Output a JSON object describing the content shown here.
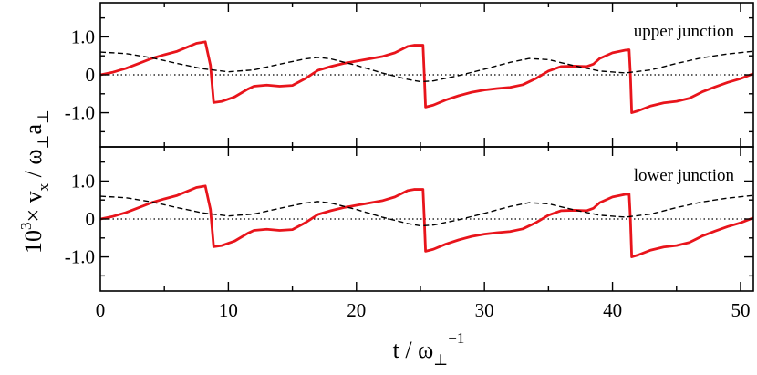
{
  "chart_data": [
    {
      "type": "line",
      "annotation": "upper junction",
      "xlim": [
        0,
        51
      ],
      "ylim": [
        -1.9,
        1.9
      ],
      "yticks": [
        {
          "value": 1.0,
          "label": "1.0"
        },
        {
          "value": 0,
          "label": "0"
        },
        {
          "value": -1.0,
          "label": "-1.0"
        }
      ],
      "series": [
        {
          "style": "solid",
          "color": "#e8141b",
          "points": [
            [
              0,
              0
            ],
            [
              1,
              0.07
            ],
            [
              2,
              0.17
            ],
            [
              3,
              0.3
            ],
            [
              4,
              0.43
            ],
            [
              5,
              0.53
            ],
            [
              6,
              0.62
            ],
            [
              7,
              0.76
            ],
            [
              7.5,
              0.83
            ],
            [
              8.2,
              0.87
            ],
            [
              8.6,
              0.25
            ],
            [
              8.85,
              -0.73
            ],
            [
              9.5,
              -0.7
            ],
            [
              10.5,
              -0.58
            ],
            [
              11.5,
              -0.38
            ],
            [
              12,
              -0.3
            ],
            [
              13,
              -0.27
            ],
            [
              14,
              -0.3
            ],
            [
              15,
              -0.28
            ],
            [
              16,
              -0.1
            ],
            [
              17,
              0.12
            ],
            [
              18,
              0.22
            ],
            [
              19,
              0.3
            ],
            [
              20,
              0.36
            ],
            [
              21,
              0.42
            ],
            [
              22,
              0.48
            ],
            [
              23,
              0.58
            ],
            [
              24,
              0.75
            ],
            [
              24.5,
              0.78
            ],
            [
              25.2,
              0.78
            ],
            [
              25.3,
              0
            ],
            [
              25.4,
              -0.85
            ],
            [
              26,
              -0.8
            ],
            [
              27,
              -0.66
            ],
            [
              28,
              -0.55
            ],
            [
              29,
              -0.46
            ],
            [
              30,
              -0.4
            ],
            [
              31,
              -0.36
            ],
            [
              32,
              -0.33
            ],
            [
              33,
              -0.26
            ],
            [
              34,
              -0.1
            ],
            [
              35,
              0.1
            ],
            [
              36,
              0.22
            ],
            [
              37,
              0.23
            ],
            [
              38,
              0.22
            ],
            [
              38.5,
              0.28
            ],
            [
              39,
              0.43
            ],
            [
              40,
              0.58
            ],
            [
              41,
              0.65
            ],
            [
              41.3,
              0.66
            ],
            [
              41.4,
              0
            ],
            [
              41.5,
              -1.0
            ],
            [
              42,
              -0.95
            ],
            [
              43,
              -0.82
            ],
            [
              44,
              -0.74
            ],
            [
              45,
              -0.7
            ],
            [
              46,
              -0.62
            ],
            [
              47,
              -0.45
            ],
            [
              48,
              -0.32
            ],
            [
              49,
              -0.2
            ],
            [
              50,
              -0.1
            ],
            [
              51,
              0.03
            ]
          ]
        },
        {
          "style": "dashed",
          "color": "#000000",
          "points": [
            [
              0,
              0.6
            ],
            [
              2,
              0.56
            ],
            [
              4,
              0.45
            ],
            [
              6,
              0.3
            ],
            [
              8,
              0.16
            ],
            [
              10,
              0.08
            ],
            [
              12,
              0.13
            ],
            [
              14,
              0.28
            ],
            [
              16,
              0.42
            ],
            [
              17,
              0.46
            ],
            [
              18,
              0.42
            ],
            [
              20,
              0.25
            ],
            [
              22,
              0.05
            ],
            [
              24,
              -0.12
            ],
            [
              25,
              -0.18
            ],
            [
              26,
              -0.16
            ],
            [
              28,
              -0.02
            ],
            [
              30,
              0.15
            ],
            [
              32,
              0.33
            ],
            [
              33.5,
              0.43
            ],
            [
              35,
              0.4
            ],
            [
              37,
              0.24
            ],
            [
              39,
              0.1
            ],
            [
              41,
              0.05
            ],
            [
              43,
              0.13
            ],
            [
              45,
              0.3
            ],
            [
              47,
              0.45
            ],
            [
              49,
              0.55
            ],
            [
              51,
              0.62
            ]
          ]
        }
      ]
    },
    {
      "type": "line",
      "annotation": "lower junction",
      "xlim": [
        0,
        51
      ],
      "ylim": [
        -1.9,
        1.9
      ],
      "yticks": [
        {
          "value": 1.0,
          "label": "1.0"
        },
        {
          "value": 0,
          "label": "0"
        },
        {
          "value": -1.0,
          "label": "-1.0"
        }
      ],
      "xticks": [
        {
          "value": 0,
          "label": "0"
        },
        {
          "value": 10,
          "label": "10"
        },
        {
          "value": 20,
          "label": "20"
        },
        {
          "value": 30,
          "label": "30"
        },
        {
          "value": 40,
          "label": "40"
        },
        {
          "value": 50,
          "label": "50"
        }
      ],
      "series": [
        {
          "style": "solid",
          "color": "#e8141b",
          "points": [
            [
              0,
              0
            ],
            [
              1,
              0.07
            ],
            [
              2,
              0.17
            ],
            [
              3,
              0.3
            ],
            [
              4,
              0.43
            ],
            [
              5,
              0.53
            ],
            [
              6,
              0.62
            ],
            [
              7,
              0.76
            ],
            [
              7.5,
              0.83
            ],
            [
              8.2,
              0.87
            ],
            [
              8.6,
              0.25
            ],
            [
              8.85,
              -0.73
            ],
            [
              9.5,
              -0.7
            ],
            [
              10.5,
              -0.58
            ],
            [
              11.5,
              -0.38
            ],
            [
              12,
              -0.3
            ],
            [
              13,
              -0.27
            ],
            [
              14,
              -0.3
            ],
            [
              15,
              -0.28
            ],
            [
              16,
              -0.1
            ],
            [
              17,
              0.12
            ],
            [
              18,
              0.22
            ],
            [
              19,
              0.3
            ],
            [
              20,
              0.36
            ],
            [
              21,
              0.42
            ],
            [
              22,
              0.48
            ],
            [
              23,
              0.58
            ],
            [
              24,
              0.75
            ],
            [
              24.5,
              0.78
            ],
            [
              25.2,
              0.78
            ],
            [
              25.3,
              0
            ],
            [
              25.4,
              -0.85
            ],
            [
              26,
              -0.8
            ],
            [
              27,
              -0.66
            ],
            [
              28,
              -0.55
            ],
            [
              29,
              -0.46
            ],
            [
              30,
              -0.4
            ],
            [
              31,
              -0.36
            ],
            [
              32,
              -0.33
            ],
            [
              33,
              -0.26
            ],
            [
              34,
              -0.1
            ],
            [
              35,
              0.1
            ],
            [
              36,
              0.22
            ],
            [
              37,
              0.23
            ],
            [
              38,
              0.22
            ],
            [
              38.5,
              0.28
            ],
            [
              39,
              0.43
            ],
            [
              40,
              0.58
            ],
            [
              41,
              0.65
            ],
            [
              41.3,
              0.66
            ],
            [
              41.4,
              0
            ],
            [
              41.5,
              -1.0
            ],
            [
              42,
              -0.95
            ],
            [
              43,
              -0.82
            ],
            [
              44,
              -0.74
            ],
            [
              45,
              -0.7
            ],
            [
              46,
              -0.62
            ],
            [
              47,
              -0.45
            ],
            [
              48,
              -0.32
            ],
            [
              49,
              -0.2
            ],
            [
              50,
              -0.1
            ],
            [
              51,
              0.03
            ]
          ]
        },
        {
          "style": "dashed",
          "color": "#000000",
          "points": [
            [
              0,
              0.6
            ],
            [
              2,
              0.56
            ],
            [
              4,
              0.45
            ],
            [
              6,
              0.3
            ],
            [
              8,
              0.16
            ],
            [
              10,
              0.08
            ],
            [
              12,
              0.13
            ],
            [
              14,
              0.28
            ],
            [
              16,
              0.42
            ],
            [
              17,
              0.46
            ],
            [
              18,
              0.42
            ],
            [
              20,
              0.25
            ],
            [
              22,
              0.05
            ],
            [
              24,
              -0.12
            ],
            [
              25,
              -0.18
            ],
            [
              26,
              -0.16
            ],
            [
              28,
              -0.02
            ],
            [
              30,
              0.15
            ],
            [
              32,
              0.33
            ],
            [
              33.5,
              0.43
            ],
            [
              35,
              0.4
            ],
            [
              37,
              0.24
            ],
            [
              39,
              0.1
            ],
            [
              41,
              0.05
            ],
            [
              43,
              0.13
            ],
            [
              45,
              0.3
            ],
            [
              47,
              0.45
            ],
            [
              49,
              0.55
            ],
            [
              51,
              0.62
            ]
          ]
        }
      ]
    }
  ],
  "axis_labels": {
    "y": {
      "prefix": "10",
      "sup": "3",
      "mid": "× v",
      "sub_x": "x",
      "slash": " / ω",
      "sub_perp": "⊥",
      "a": "a",
      "sub_perp2": "⊥"
    },
    "x": {
      "t": "t / ω",
      "sub": "⊥",
      "sup": "−1"
    }
  }
}
